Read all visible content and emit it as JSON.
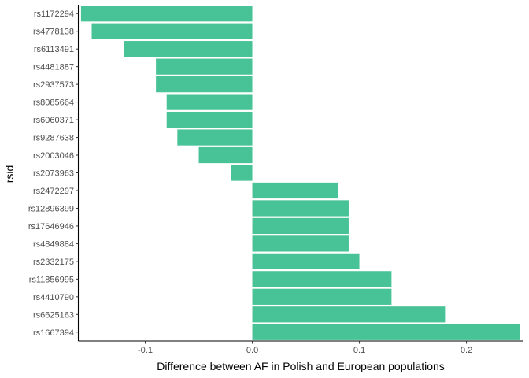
{
  "chart_data": {
    "type": "bar",
    "orientation": "horizontal",
    "xlabel": "Difference between AF in Polish and European populations",
    "ylabel": "rsid",
    "xlim": [
      -0.1625,
      0.2525
    ],
    "x_ticks": [
      -0.1,
      0.0,
      0.1,
      0.2
    ],
    "x_tick_labels": [
      "-0.1",
      "0.0",
      "0.1",
      "0.2"
    ],
    "grid": false,
    "bar_color": "#48c297",
    "categories": [
      "rs1172294",
      "rs4778138",
      "rs6113491",
      "rs4481887",
      "rs2937573",
      "rs8085664",
      "rs6060371",
      "rs9287638",
      "rs2003046",
      "rs2073963",
      "rs2472297",
      "rs12896399",
      "rs17646946",
      "rs4849884",
      "rs2332175",
      "rs11856995",
      "rs4410790",
      "rs6625163",
      "rs1667394"
    ],
    "values": [
      -0.16,
      -0.15,
      -0.12,
      -0.09,
      -0.09,
      -0.08,
      -0.08,
      -0.07,
      -0.05,
      -0.02,
      0.08,
      0.09,
      0.09,
      0.09,
      0.1,
      0.13,
      0.13,
      0.18,
      0.25
    ]
  }
}
